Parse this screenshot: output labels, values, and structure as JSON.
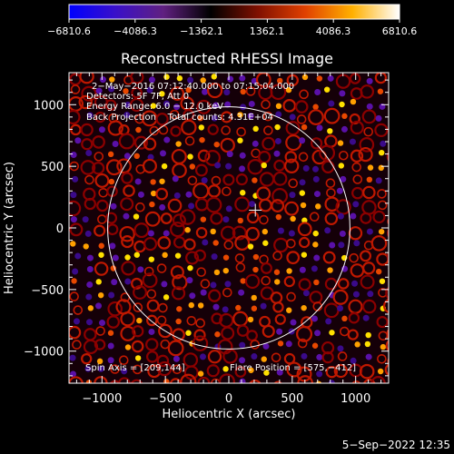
{
  "colorbar": {
    "ticks": [
      "−6810.6",
      "−4086.3",
      "−1362.1",
      "1362.1",
      "4086.3",
      "6810.6"
    ],
    "tick_values": [
      -6810.6,
      -4086.3,
      -1362.1,
      1362.1,
      4086.3,
      6810.6
    ],
    "range": [
      -6810.6,
      6810.6
    ],
    "colors": [
      "#0000ff",
      "#3a10c8",
      "#602080",
      "#000000",
      "#801000",
      "#e04000",
      "#ffb000",
      "#ffffff"
    ]
  },
  "chart_data": {
    "type": "heatmap",
    "title": "Reconstructed RHESSI Image",
    "xlabel": "Heliocentric X (arcsec)",
    "ylabel": "Heliocentric Y (arcsec)",
    "xlim": [
      -1260,
      1260
    ],
    "ylim": [
      -1260,
      1260
    ],
    "x_ticks": [
      "−1000",
      "−500",
      "0",
      "500",
      "1000"
    ],
    "x_tick_values": [
      -1000,
      -500,
      0,
      500,
      1000
    ],
    "y_ticks": [
      "1000",
      "500",
      "0",
      "−500",
      "−1000"
    ],
    "y_tick_values": [
      1000,
      500,
      0,
      -500,
      -1000
    ],
    "annotations": [
      "2−May−2016 07:12:40.000 to 07:15:04.000",
      "Detectors: 5F 7F, Att 0",
      "Energy Range: 6.0 − 12.0 keV",
      "Back Projection    Total counts: 4.31E+04"
    ],
    "spin_axis": "Spin Axis = [209,144]",
    "flare_position": "Flare Position = [575,−412]",
    "solar_limb": {
      "center": [
        0,
        0
      ],
      "radius_arcsec": 955
    },
    "marker": {
      "x": 209,
      "y": 144
    },
    "flare": {
      "x": 575,
      "y": -412
    }
  },
  "timestamp": "5−Sep−2022 12:35"
}
